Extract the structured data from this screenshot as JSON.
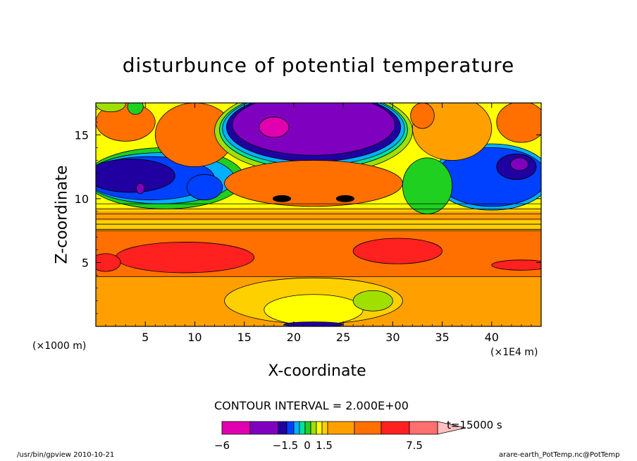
{
  "chart_data": {
    "type": "heatmap",
    "title": "disturbunce of potential temperature",
    "xlabel": "X-coordinate",
    "ylabel": "Z-coordinate",
    "x_unit_left": "(×1000 m)",
    "x_unit_right": "(×1E4 m)",
    "xlim": [
      0,
      45
    ],
    "ylim": [
      0,
      17.5
    ],
    "xticks": [
      "5",
      "10",
      "15",
      "20",
      "25",
      "30",
      "35",
      "40"
    ],
    "yticks": [
      "5",
      "10",
      "15"
    ],
    "contour_interval": "CONTOUR INTERVAL = 2.000E+00",
    "time_label": "t=15000 s",
    "colorbar": {
      "labels": [
        "−6",
        "−1.5",
        "0",
        "1.5",
        "7.5"
      ],
      "colors": [
        "#e000b0",
        "#8000c0",
        "#2000a0",
        "#0040ff",
        "#00b0ff",
        "#00e0a0",
        "#20d020",
        "#a0e000",
        "#ffff00",
        "#ffd000",
        "#ffa000",
        "#ff7000",
        "#ff2020",
        "#ff7070",
        "#ffc0c0"
      ]
    },
    "regions": [
      {
        "feature": "upper central minimum",
        "x": [
          14,
          30
        ],
        "z": [
          13,
          17.5
        ],
        "value_min": -6
      },
      {
        "feature": "upper left minimum",
        "x": [
          0,
          14
        ],
        "z": [
          9.5,
          13
        ],
        "value_min": -4
      },
      {
        "feature": "upper right minimum",
        "x": [
          35,
          45
        ],
        "z": [
          10,
          13.5
        ],
        "value_min": -4
      },
      {
        "feature": "mid-level band",
        "x": [
          0,
          45
        ],
        "z": [
          4,
          7.5
        ],
        "value": 6
      },
      {
        "feature": "lower band",
        "x": [
          0,
          45
        ],
        "z": [
          0,
          4
        ],
        "value": 3.5
      }
    ]
  },
  "footer": {
    "left": "/usr/bin/gpview   2010-10-21",
    "right": "arare-earth_PotTemp.nc@PotTemp"
  }
}
